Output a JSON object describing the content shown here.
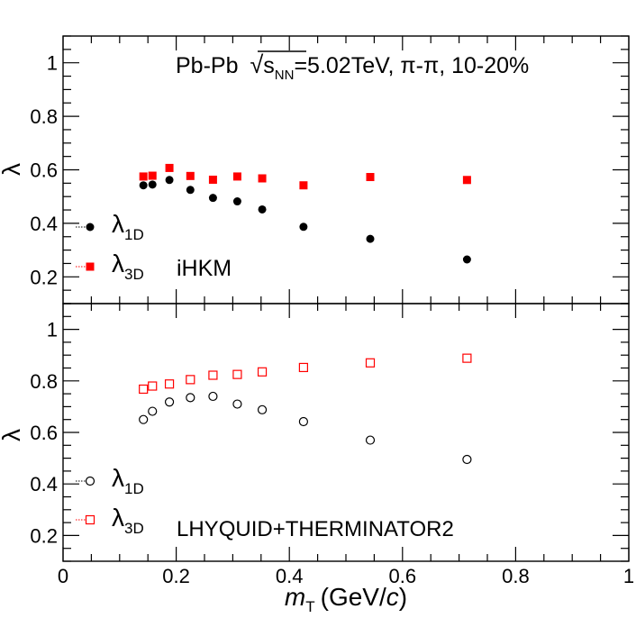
{
  "chart_data": [
    {
      "type": "scatter",
      "panel": "top",
      "title": "Pb-Pb √s_NN=5.02TeV, π-π, 10-20%",
      "title_parts": {
        "system": "Pb-Pb",
        "sqrt": "√",
        "s": "s",
        "nn": "NN",
        "energy": "=5.02TeV, π-π, 10-20%"
      },
      "ylabel": "λ",
      "model_label": "iHKM",
      "ylim": [
        0.1,
        1.1
      ],
      "yticks": [
        "0.2",
        "0.4",
        "0.6",
        "0.8",
        "1"
      ],
      "xlim": [
        0,
        1
      ],
      "marker_style": "filled",
      "series": [
        {
          "name": "λ1D",
          "name_main": "λ",
          "name_sub": "1D",
          "color": "#000000",
          "marker": "circle",
          "x": [
            0.142,
            0.158,
            0.188,
            0.225,
            0.265,
            0.308,
            0.352,
            0.425,
            0.543,
            0.714
          ],
          "y": [
            0.542,
            0.545,
            0.562,
            0.525,
            0.495,
            0.482,
            0.452,
            0.387,
            0.342,
            0.265
          ]
        },
        {
          "name": "λ3D",
          "name_main": "λ",
          "name_sub": "3D",
          "color": "#ff0000",
          "marker": "square",
          "x": [
            0.142,
            0.158,
            0.188,
            0.225,
            0.265,
            0.308,
            0.352,
            0.425,
            0.543,
            0.714
          ],
          "y": [
            0.575,
            0.578,
            0.607,
            0.577,
            0.563,
            0.575,
            0.568,
            0.542,
            0.573,
            0.562
          ]
        }
      ]
    },
    {
      "type": "scatter",
      "panel": "bottom",
      "ylabel": "λ",
      "xlabel": "m_T (GeV/c)",
      "xlabel_parts": {
        "m": "m",
        "t": "T",
        "unit": "(GeV/",
        "c": "c",
        "close": ")"
      },
      "model_label": "LHYQUID+THERMINATOR2",
      "ylim": [
        0.1,
        1.1
      ],
      "yticks": [
        "0.2",
        "0.4",
        "0.6",
        "0.8",
        "1"
      ],
      "xlim": [
        0,
        1
      ],
      "xticks": [
        "0",
        "0.2",
        "0.4",
        "0.6",
        "0.8",
        "1"
      ],
      "marker_style": "open",
      "series": [
        {
          "name": "λ1D",
          "name_main": "λ",
          "name_sub": "1D",
          "color": "#000000",
          "marker": "circle",
          "x": [
            0.142,
            0.158,
            0.188,
            0.225,
            0.265,
            0.308,
            0.352,
            0.425,
            0.543,
            0.714
          ],
          "y": [
            0.65,
            0.682,
            0.718,
            0.735,
            0.74,
            0.71,
            0.688,
            0.642,
            0.57,
            0.495
          ]
        },
        {
          "name": "λ3D",
          "name_main": "λ",
          "name_sub": "3D",
          "color": "#ff0000",
          "marker": "square",
          "x": [
            0.142,
            0.158,
            0.188,
            0.225,
            0.265,
            0.308,
            0.352,
            0.425,
            0.543,
            0.714
          ],
          "y": [
            0.768,
            0.78,
            0.788,
            0.805,
            0.822,
            0.825,
            0.835,
            0.852,
            0.87,
            0.888
          ]
        }
      ]
    }
  ]
}
